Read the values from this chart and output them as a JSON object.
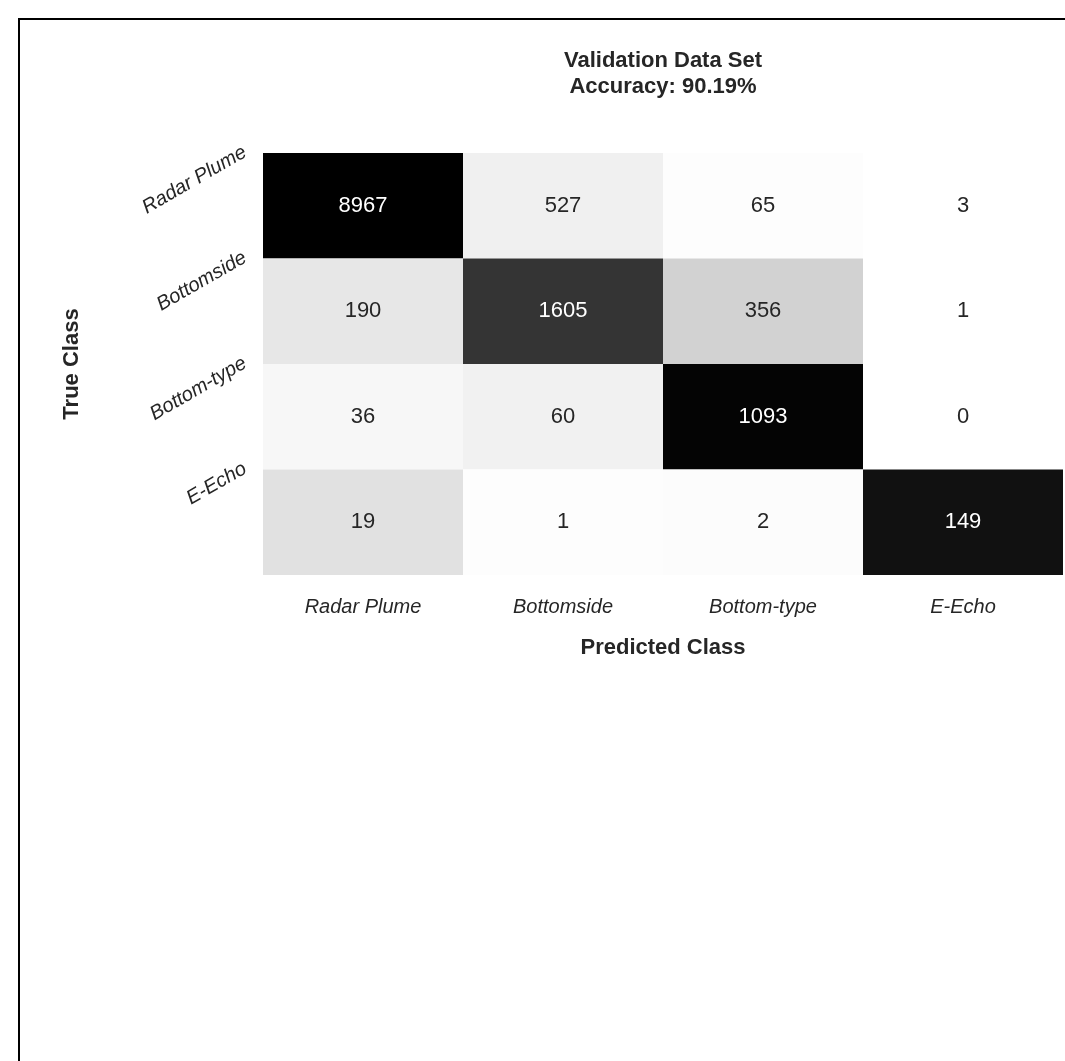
{
  "chart_data": {
    "type": "heatmap",
    "title": "Validation Data Set",
    "subtitle": "Accuracy: 90.19%",
    "xlabel": "Predicted Class",
    "ylabel": "True Class",
    "data_labels": true,
    "categories": [
      "Radar Plume",
      "Bottomside",
      "Bottom-type",
      "E-Echo"
    ],
    "y_categories": [
      "Radar Plume",
      "Bottomside",
      "Bottom-type",
      "E-Echo"
    ],
    "cells": [
      [
        8967,
        527,
        65,
        3
      ],
      [
        190,
        1605,
        356,
        1
      ],
      [
        36,
        60,
        1093,
        0
      ],
      [
        19,
        1,
        2,
        149
      ]
    ]
  }
}
